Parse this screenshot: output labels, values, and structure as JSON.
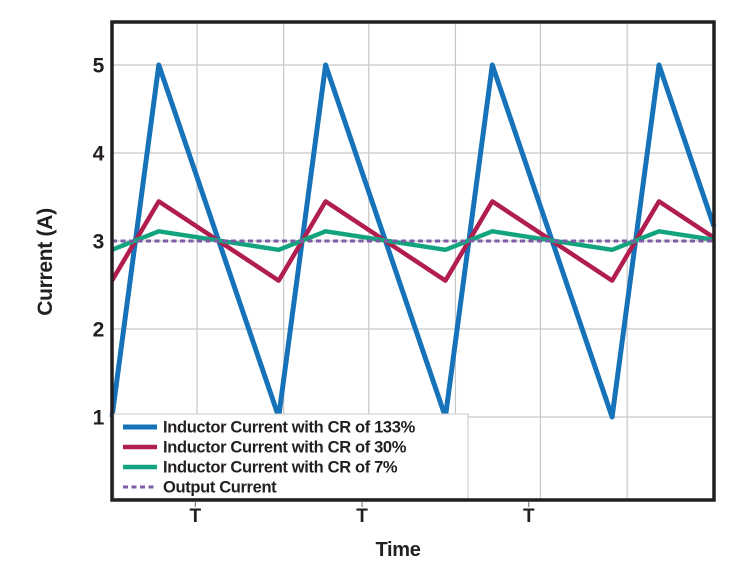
{
  "chart_data": {
    "type": "line",
    "title": "",
    "xlabel": "Time",
    "ylabel": "Current (A)",
    "x_unit_label": "T",
    "x_domain_periods": 3.611,
    "duty_cycle": 0.281,
    "ylim": [
      0.06,
      5.49
    ],
    "grid": true,
    "y_gridlines": [
      1,
      2,
      3,
      4,
      5
    ],
    "y_ticks": {
      "values": [
        5,
        4,
        3,
        2,
        1
      ],
      "labels": [
        "5",
        "4",
        "3",
        "2",
        "1"
      ]
    },
    "x_ticks": {
      "t": [
        0.5,
        1.5,
        2.5
      ],
      "labels": [
        "T",
        "T",
        "T"
      ]
    },
    "x_gridlines_t": [
      0.51,
      1.03,
      1.54,
      2.06,
      2.57,
      3.09
    ],
    "series": [
      {
        "name": "Inductor Current with CR of 133%",
        "color": "#1673b9",
        "waveform": "triangle",
        "average": 3,
        "ripple_pct": 133,
        "min": 1.0,
        "max": 5.0,
        "stroke_width": 5,
        "dashed": false
      },
      {
        "name": "Inductor Current with CR of 30%",
        "color": "#b01d4e",
        "waveform": "triangle",
        "average": 3,
        "ripple_pct": 30,
        "min": 2.55,
        "max": 3.45,
        "stroke_width": 4.5,
        "dashed": false
      },
      {
        "name": "Inductor Current with CR of 7%",
        "color": "#12a47f",
        "waveform": "triangle",
        "average": 3,
        "ripple_pct": 7,
        "min": 2.9,
        "max": 3.11,
        "stroke_width": 4.5,
        "dashed": false
      },
      {
        "name": "Output Current",
        "color": "#7b5ba6",
        "waveform": "constant",
        "value": 3,
        "stroke_width": 3,
        "dashed": true
      }
    ],
    "legend": {
      "position": "bottom-left-inside",
      "box_fill": "#ffffff",
      "box_border": "#c9c9c9"
    },
    "colors": {
      "axis": "#231f20",
      "grid": "#c7c7c7",
      "background": "#ffffff",
      "tick": "#888888"
    }
  }
}
